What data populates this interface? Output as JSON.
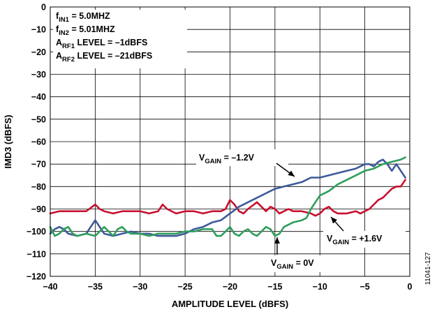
{
  "figure_id": "11041-127",
  "chart_data": {
    "type": "line",
    "xlabel": "AMPLITUDE LEVEL (dBFS)",
    "ylabel": "IMD3 (dBFS)",
    "xlim": [
      -40,
      0
    ],
    "ylim": [
      -120,
      0
    ],
    "xticks": [
      "−40",
      "−35",
      "−30",
      "−25",
      "−20",
      "−15",
      "−10",
      "−5",
      "0"
    ],
    "yticks": [
      "0",
      "−10",
      "−20",
      "−30",
      "−40",
      "−50",
      "−60",
      "−70",
      "−80",
      "−90",
      "−100",
      "−110",
      "−120"
    ],
    "grid": true,
    "legend": {
      "lines": [
        {
          "pre": "f",
          "sub": "IN1",
          "post": " = 5.0MHZ"
        },
        {
          "pre": "f",
          "sub": "IN2",
          "post": " = 5.01MHZ"
        },
        {
          "pre": "A",
          "sub": "RF1",
          "post": " LEVEL = –1dBFS"
        },
        {
          "pre": "A",
          "sub": "RF2",
          "post": " LEVEL = –21dBFS"
        }
      ]
    },
    "annotations": [
      {
        "pre": "V",
        "sub": "GAIN",
        "post": " = –1.2V",
        "series": "blue"
      },
      {
        "pre": "V",
        "sub": "GAIN",
        "post": " = +1.6V",
        "series": "red"
      },
      {
        "pre": "V",
        "sub": "GAIN",
        "post": " = 0V",
        "series": "green"
      }
    ],
    "series": [
      {
        "color": "#c8102e",
        "x": [
          -40,
          -39,
          -38,
          -37,
          -36,
          -35,
          -34.5,
          -34,
          -33,
          -32,
          -31,
          -30,
          -29,
          -28,
          -27.5,
          -27,
          -26,
          -25,
          -24,
          -23,
          -22,
          -21,
          -20.5,
          -20,
          -19.5,
          -19,
          -18.5,
          -18,
          -17,
          -16,
          -15.5,
          -15,
          -14.5,
          -14,
          -13.5,
          -13,
          -12,
          -11,
          -10.5,
          -10,
          -9.5,
          -9,
          -8.5,
          -8,
          -7,
          -6,
          -5.5,
          -5,
          -4.5,
          -4,
          -3.5,
          -3,
          -2.5,
          -2,
          -1.5,
          -1,
          -0.5
        ],
        "values": [
          -92,
          -91,
          -91,
          -91,
          -91,
          -88,
          -90,
          -91,
          -92,
          -91,
          -91,
          -91,
          -92,
          -91,
          -88,
          -90,
          -92,
          -91,
          -91,
          -92,
          -91,
          -91,
          -90,
          -86,
          -88,
          -91,
          -92,
          -90,
          -87,
          -91,
          -89,
          -90,
          -92,
          -91,
          -90,
          -91,
          -91,
          -92,
          -93,
          -92,
          -90,
          -89,
          -91,
          -92,
          -92,
          -91,
          -92,
          -91,
          -90,
          -88,
          -86,
          -85,
          -83,
          -81,
          -80,
          -80,
          -77
        ]
      },
      {
        "color": "#3d5a99",
        "x": [
          -40,
          -39.5,
          -39,
          -38.5,
          -38,
          -37,
          -36,
          -35.5,
          -35,
          -34.5,
          -34,
          -33,
          -32,
          -31,
          -30,
          -29,
          -28,
          -27,
          -26,
          -25,
          -24,
          -23,
          -22,
          -21,
          -20,
          -19,
          -18,
          -17,
          -16,
          -15,
          -14,
          -13,
          -12,
          -11,
          -10,
          -9,
          -8,
          -7,
          -6,
          -5.5,
          -5,
          -4.5,
          -4,
          -3.5,
          -3,
          -2.5,
          -2,
          -1.5,
          -1,
          -0.5
        ],
        "values": [
          -101,
          -99,
          -98,
          -99,
          -101,
          -102,
          -101,
          -98,
          -95,
          -98,
          -101,
          -102,
          -101,
          -100,
          -101,
          -101,
          -102,
          -102,
          -102,
          -101,
          -99,
          -98,
          -96,
          -95,
          -92,
          -89,
          -87,
          -85,
          -83,
          -81,
          -80,
          -79,
          -78,
          -76,
          -76,
          -75,
          -74,
          -73,
          -72,
          -71,
          -70,
          -70,
          -71,
          -69,
          -68,
          -70,
          -73,
          -70,
          -73,
          -76
        ]
      },
      {
        "color": "#2e9e5b",
        "x": [
          -40,
          -39.5,
          -39,
          -38.5,
          -38,
          -37.5,
          -37,
          -36,
          -35,
          -34.5,
          -34,
          -33.5,
          -33,
          -32.5,
          -32,
          -31.5,
          -31,
          -30,
          -29,
          -28,
          -27,
          -26,
          -25,
          -24,
          -23,
          -22,
          -21.5,
          -21,
          -20.5,
          -20,
          -19.5,
          -19,
          -18.5,
          -18,
          -17.5,
          -17,
          -16.5,
          -16,
          -15.5,
          -15,
          -14.5,
          -14,
          -13,
          -12,
          -11.5,
          -11,
          -10.5,
          -10,
          -9,
          -8,
          -7,
          -6,
          -5,
          -4,
          -3,
          -2,
          -1,
          -0.5
        ],
        "values": [
          -98,
          -102,
          -101,
          -99,
          -98,
          -101,
          -102,
          -101,
          -102,
          -100,
          -98,
          -100,
          -102,
          -99,
          -98,
          -100,
          -101,
          -101,
          -102,
          -101,
          -101,
          -101,
          -100,
          -100,
          -99,
          -99,
          -102,
          -102,
          -100,
          -98,
          -101,
          -102,
          -100,
          -99,
          -101,
          -102,
          -100,
          -98,
          -99,
          -102,
          -101,
          -98,
          -96,
          -95,
          -94,
          -90,
          -87,
          -84,
          -82,
          -79,
          -77,
          -75,
          -73,
          -72,
          -70,
          -69,
          -68,
          -67
        ]
      }
    ]
  }
}
